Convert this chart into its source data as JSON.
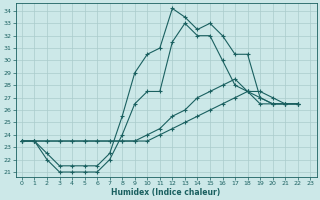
{
  "xlabel": "Humidex (Indice chaleur)",
  "background_color": "#cce8e8",
  "grid_color": "#aacccc",
  "line_color": "#1a6060",
  "xlim": [
    -0.5,
    23.5
  ],
  "ylim": [
    20.6,
    34.6
  ],
  "yticks": [
    21,
    22,
    23,
    24,
    25,
    26,
    27,
    28,
    29,
    30,
    31,
    32,
    33,
    34
  ],
  "xticks": [
    0,
    1,
    2,
    3,
    4,
    5,
    6,
    7,
    8,
    9,
    10,
    11,
    12,
    13,
    14,
    15,
    16,
    17,
    18,
    19,
    20,
    21,
    22,
    23
  ],
  "s1_x": [
    0,
    1,
    2,
    3,
    4,
    5,
    6,
    7,
    8,
    9,
    10,
    11,
    12,
    13,
    14,
    15,
    16,
    17,
    18,
    19,
    20,
    21,
    22
  ],
  "s1_y": [
    23.5,
    23.5,
    22.5,
    21.5,
    21.5,
    21.5,
    21.5,
    22.5,
    25.5,
    29.0,
    30.5,
    31.0,
    34.2,
    33.5,
    32.5,
    33.0,
    32.0,
    30.5,
    30.5,
    27.0,
    26.5,
    26.5,
    26.5
  ],
  "s2_x": [
    0,
    1,
    2,
    3,
    4,
    5,
    6,
    7,
    8,
    9,
    10,
    11,
    12,
    13,
    14,
    15,
    16,
    17,
    18,
    19,
    20,
    21,
    22
  ],
  "s2_y": [
    23.5,
    23.5,
    22.0,
    21.0,
    21.0,
    21.0,
    21.0,
    22.0,
    24.0,
    26.5,
    27.5,
    27.5,
    31.5,
    33.0,
    32.0,
    32.0,
    30.0,
    28.0,
    27.5,
    26.5,
    26.5,
    26.5,
    26.5
  ],
  "s3_x": [
    0,
    1,
    2,
    3,
    4,
    5,
    6,
    7,
    8,
    9,
    10,
    11,
    12,
    13,
    14,
    15,
    16,
    17,
    18,
    19,
    20,
    21,
    22
  ],
  "s3_y": [
    23.5,
    23.5,
    23.5,
    23.5,
    23.5,
    23.5,
    23.5,
    23.5,
    23.5,
    23.5,
    23.5,
    24.0,
    24.5,
    25.0,
    25.5,
    26.0,
    26.5,
    27.0,
    27.5,
    27.5,
    27.0,
    26.5,
    26.5
  ],
  "s4_x": [
    0,
    1,
    2,
    3,
    4,
    5,
    6,
    7,
    8,
    9,
    10,
    11,
    12,
    13,
    14,
    15,
    16,
    17,
    18,
    19,
    20,
    21,
    22
  ],
  "s4_y": [
    23.5,
    23.5,
    23.5,
    23.5,
    23.5,
    23.5,
    23.5,
    23.5,
    23.5,
    23.5,
    24.0,
    24.5,
    25.5,
    26.0,
    27.0,
    27.5,
    28.0,
    28.5,
    27.5,
    27.0,
    26.5,
    26.5,
    26.5
  ]
}
